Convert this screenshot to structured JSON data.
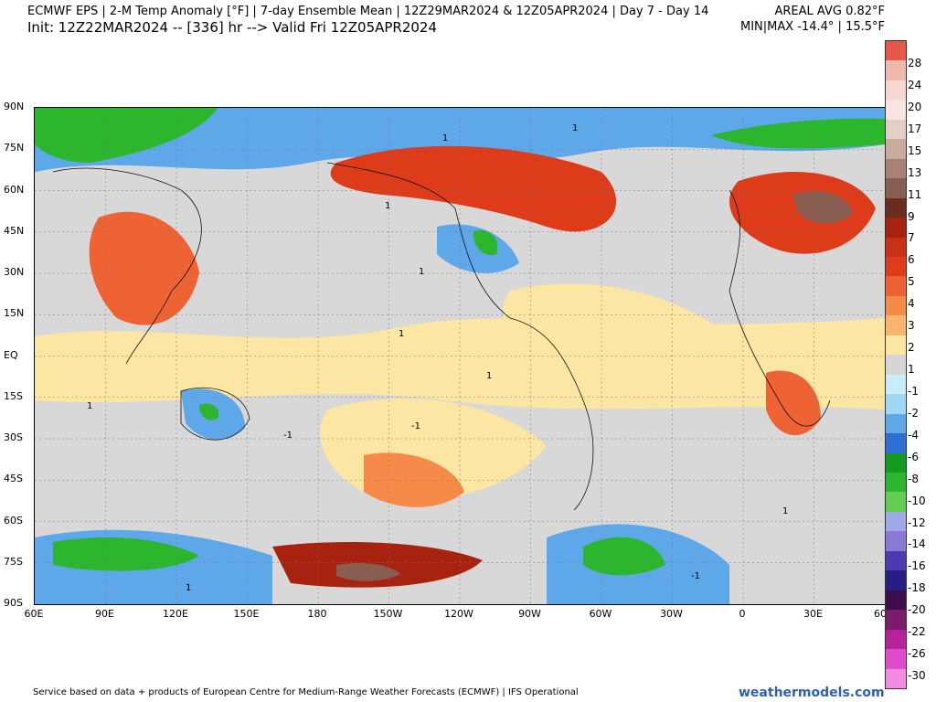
{
  "header": {
    "title": "ECMWF EPS | 2-M Temp Anomaly [°F] | 7-day Ensemble Mean | 12Z29MAR2024 & 12Z05APR2024 | Day 7 - Day 14",
    "init": "Init: 12Z22MAR2024 -- [336] hr --> Valid Fri 12Z05APR2024",
    "areal_avg": "AREAL AVG 0.82°F",
    "min_max": "MIN|MAX -14.4° | 15.5°F"
  },
  "axes": {
    "lat_labels": [
      "90N",
      "75N",
      "60N",
      "45N",
      "30N",
      "15N",
      "EQ",
      "15S",
      "30S",
      "45S",
      "60S",
      "75S",
      "90S"
    ],
    "lon_labels": [
      "60E",
      "90E",
      "120E",
      "150E",
      "180",
      "150W",
      "120W",
      "90W",
      "60W",
      "30W",
      "0",
      "30E",
      "60"
    ]
  },
  "colorbar": {
    "labels": [
      "28",
      "24",
      "20",
      "17",
      "15",
      "13",
      "11",
      "9",
      "7",
      "6",
      "5",
      "4",
      "3",
      "2",
      "1",
      "-1",
      "-2",
      "-4",
      "-6",
      "-8",
      "-10",
      "-12",
      "-14",
      "-16",
      "-18",
      "-20",
      "-22",
      "-26",
      "-30"
    ],
    "colors": [
      "#e8574a",
      "#f0b9ad",
      "#f6d6d0",
      "#f7e5e2",
      "#e4cfc7",
      "#c9aba0",
      "#a88277",
      "#8a5d53",
      "#6b2c20",
      "#a7220f",
      "#c83115",
      "#dd3b19",
      "#ee6233",
      "#f68a48",
      "#f9b46e",
      "#fbe6a3",
      "#d6d6d6",
      "#c8ecf8",
      "#9fd8f3",
      "#5ea7e8",
      "#2e6fd4",
      "#149a1e",
      "#2cb62d",
      "#63cc55",
      "#a1a8e9",
      "#8a7ad8",
      "#4f38b4",
      "#271e84",
      "#3b0d4f",
      "#7a1b6e",
      "#b7219c",
      "#e04ccb",
      "#f58ae5"
    ],
    "color_meaning": "warm colors positive anomaly, cool colors negative anomaly"
  },
  "footer": {
    "credit": "Service based on data + products of European Centre for Medium-Range Weather Forecasts (ECMWF) | IFS Operational",
    "brand": "weathermodels.com"
  },
  "contour_label": "1",
  "contour_label_neg": "-1"
}
